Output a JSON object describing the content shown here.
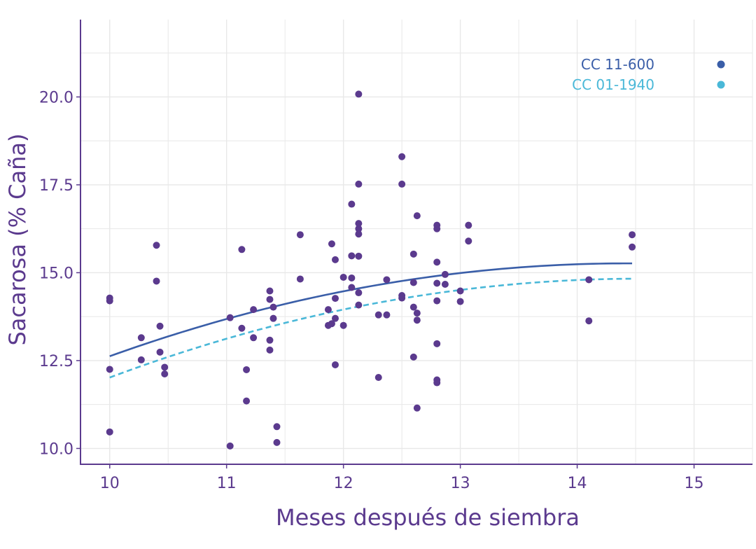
{
  "chart_data": {
    "type": "scatter",
    "xlabel": "Meses después de siembra",
    "ylabel": "Sacarosa (% Caña)",
    "xlim": [
      9.75,
      15.5
    ],
    "ylim": [
      9.55,
      22.2
    ],
    "xticks": [
      10,
      11,
      12,
      13,
      14,
      15
    ],
    "xtick_labels": [
      "10",
      "11",
      "12",
      "13",
      "14",
      "15"
    ],
    "yticks": [
      10.0,
      12.5,
      15.0,
      17.5,
      20.0
    ],
    "ytick_labels": [
      "10.0",
      "12.5",
      "15.0",
      "17.5",
      "20.0"
    ],
    "grid": true,
    "legend_position": "top-right",
    "colors": {
      "points": "#5b3a8e",
      "axis": "#5b3a8e",
      "grid": "#e8e8e8",
      "series1": "#3a5ea8",
      "series2": "#4ab8d8"
    },
    "series": [
      {
        "name": "CC  11-600",
        "color": "#3a5ea8",
        "style": "solid",
        "curve": {
          "a": -0.1347,
          "b": 3.8869,
          "c": -12.775
        }
      },
      {
        "name": "CC 01-1940",
        "color": "#4ab8d8",
        "style": "dashed",
        "curve": {
          "a": -0.1369,
          "b": 3.9788,
          "c": -14.08
        }
      }
    ],
    "curve_x_range": [
      10,
      14.47
    ],
    "points": [
      [
        10.0,
        14.28
      ],
      [
        10.0,
        14.2
      ],
      [
        10.0,
        12.25
      ],
      [
        10.0,
        10.47
      ],
      [
        10.27,
        13.15
      ],
      [
        10.27,
        12.52
      ],
      [
        10.4,
        15.78
      ],
      [
        10.4,
        14.76
      ],
      [
        10.43,
        13.48
      ],
      [
        10.43,
        12.74
      ],
      [
        10.47,
        12.31
      ],
      [
        10.47,
        12.12
      ],
      [
        11.03,
        13.72
      ],
      [
        11.03,
        10.07
      ],
      [
        11.13,
        15.66
      ],
      [
        11.13,
        13.42
      ],
      [
        11.17,
        12.24
      ],
      [
        11.17,
        11.35
      ],
      [
        11.23,
        13.95
      ],
      [
        11.23,
        13.15
      ],
      [
        11.37,
        14.48
      ],
      [
        11.37,
        14.24
      ],
      [
        11.37,
        13.08
      ],
      [
        11.37,
        12.8
      ],
      [
        11.4,
        14.02
      ],
      [
        11.4,
        13.7
      ],
      [
        11.43,
        10.62
      ],
      [
        11.43,
        10.17
      ],
      [
        11.63,
        16.08
      ],
      [
        11.63,
        14.82
      ],
      [
        11.87,
        13.95
      ],
      [
        11.87,
        13.5
      ],
      [
        11.9,
        15.82
      ],
      [
        11.9,
        13.55
      ],
      [
        11.93,
        15.37
      ],
      [
        11.93,
        14.27
      ],
      [
        11.93,
        13.7
      ],
      [
        11.93,
        12.38
      ],
      [
        12.0,
        14.87
      ],
      [
        12.0,
        13.5
      ],
      [
        12.07,
        16.95
      ],
      [
        12.07,
        15.48
      ],
      [
        12.07,
        14.85
      ],
      [
        12.07,
        14.58
      ],
      [
        12.13,
        20.08
      ],
      [
        12.13,
        17.52
      ],
      [
        12.13,
        16.4
      ],
      [
        12.13,
        16.25
      ],
      [
        12.13,
        16.1
      ],
      [
        12.13,
        15.47
      ],
      [
        12.13,
        14.43
      ],
      [
        12.13,
        14.08
      ],
      [
        12.3,
        13.8
      ],
      [
        12.3,
        12.02
      ],
      [
        12.37,
        14.8
      ],
      [
        12.37,
        13.8
      ],
      [
        12.5,
        18.3
      ],
      [
        12.5,
        17.52
      ],
      [
        12.5,
        14.35
      ],
      [
        12.5,
        14.28
      ],
      [
        12.6,
        15.53
      ],
      [
        12.6,
        14.72
      ],
      [
        12.6,
        14.02
      ],
      [
        12.6,
        12.6
      ],
      [
        12.63,
        16.62
      ],
      [
        12.63,
        13.85
      ],
      [
        12.63,
        13.65
      ],
      [
        12.63,
        11.15
      ],
      [
        12.8,
        16.35
      ],
      [
        12.8,
        16.25
      ],
      [
        12.8,
        15.3
      ],
      [
        12.8,
        14.7
      ],
      [
        12.8,
        14.2
      ],
      [
        12.8,
        12.98
      ],
      [
        12.8,
        11.95
      ],
      [
        12.8,
        11.87
      ],
      [
        12.87,
        14.95
      ],
      [
        12.87,
        14.67
      ],
      [
        13.0,
        14.48
      ],
      [
        13.0,
        14.18
      ],
      [
        13.07,
        16.35
      ],
      [
        13.07,
        15.9
      ],
      [
        14.1,
        14.8
      ],
      [
        14.1,
        13.63
      ],
      [
        14.47,
        16.08
      ],
      [
        14.47,
        15.73
      ]
    ]
  }
}
